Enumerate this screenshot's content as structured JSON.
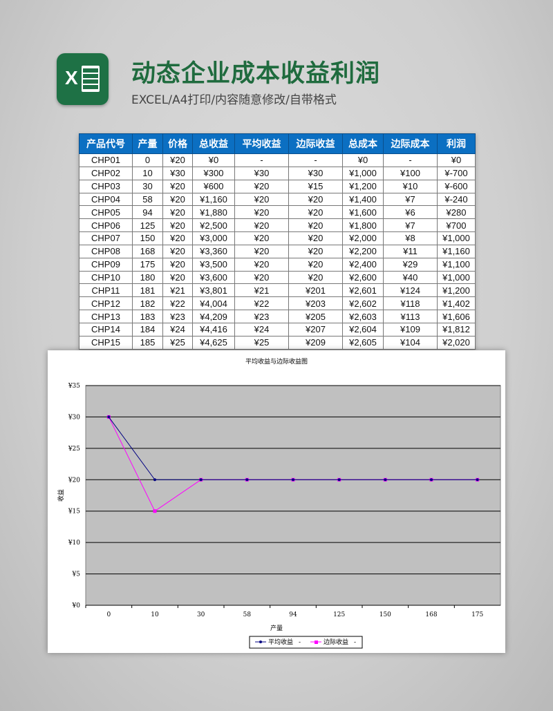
{
  "header": {
    "title": "动态企业成本收益利润",
    "subtitle": "EXCEL/A4打印/内容随意修改/自带格式",
    "logo_letter": "X"
  },
  "table": {
    "columns": [
      "产品代号",
      "产量",
      "价格",
      "总收益",
      "平均收益",
      "边际收益",
      "总成本",
      "边际成本",
      "利润"
    ],
    "rows": [
      [
        "CHP01",
        "0",
        "¥20",
        "¥0",
        "-",
        "-",
        "¥0",
        "-",
        "¥0"
      ],
      [
        "CHP02",
        "10",
        "¥30",
        "¥300",
        "¥30",
        "¥30",
        "¥1,000",
        "¥100",
        "¥-700"
      ],
      [
        "CHP03",
        "30",
        "¥20",
        "¥600",
        "¥20",
        "¥15",
        "¥1,200",
        "¥10",
        "¥-600"
      ],
      [
        "CHP04",
        "58",
        "¥20",
        "¥1,160",
        "¥20",
        "¥20",
        "¥1,400",
        "¥7",
        "¥-240"
      ],
      [
        "CHP05",
        "94",
        "¥20",
        "¥1,880",
        "¥20",
        "¥20",
        "¥1,600",
        "¥6",
        "¥280"
      ],
      [
        "CHP06",
        "125",
        "¥20",
        "¥2,500",
        "¥20",
        "¥20",
        "¥1,800",
        "¥7",
        "¥700"
      ],
      [
        "CHP07",
        "150",
        "¥20",
        "¥3,000",
        "¥20",
        "¥20",
        "¥2,000",
        "¥8",
        "¥1,000"
      ],
      [
        "CHP08",
        "168",
        "¥20",
        "¥3,360",
        "¥20",
        "¥20",
        "¥2,200",
        "¥11",
        "¥1,160"
      ],
      [
        "CHP09",
        "175",
        "¥20",
        "¥3,500",
        "¥20",
        "¥20",
        "¥2,400",
        "¥29",
        "¥1,100"
      ],
      [
        "CHP10",
        "180",
        "¥20",
        "¥3,600",
        "¥20",
        "¥20",
        "¥2,600",
        "¥40",
        "¥1,000"
      ],
      [
        "CHP11",
        "181",
        "¥21",
        "¥3,801",
        "¥21",
        "¥201",
        "¥2,601",
        "¥124",
        "¥1,200"
      ],
      [
        "CHP12",
        "182",
        "¥22",
        "¥4,004",
        "¥22",
        "¥203",
        "¥2,602",
        "¥118",
        "¥1,402"
      ],
      [
        "CHP13",
        "183",
        "¥23",
        "¥4,209",
        "¥23",
        "¥205",
        "¥2,603",
        "¥113",
        "¥1,606"
      ],
      [
        "CHP14",
        "184",
        "¥24",
        "¥4,416",
        "¥24",
        "¥207",
        "¥2,604",
        "¥109",
        "¥1,812"
      ],
      [
        "CHP15",
        "185",
        "¥25",
        "¥4,625",
        "¥25",
        "¥209",
        "¥2,605",
        "¥104",
        "¥2,020"
      ]
    ]
  },
  "chart_data": {
    "type": "line",
    "title": "平均收益与边际收益图",
    "xlabel": "产量",
    "ylabel": "收益",
    "categories": [
      "0",
      "10",
      "30",
      "58",
      "94",
      "125",
      "150",
      "168",
      "175"
    ],
    "yticks": [
      "¥0",
      "¥5",
      "¥10",
      "¥15",
      "¥20",
      "¥25",
      "¥30",
      "¥35"
    ],
    "ylim": [
      0,
      35
    ],
    "grid": true,
    "legend": "bottom",
    "series": [
      {
        "name": "平均收益",
        "values": [
          30,
          20,
          20,
          20,
          20,
          20,
          20,
          20,
          20
        ],
        "color": "#000080",
        "marker": "diamond"
      },
      {
        "name": "边际收益",
        "values": [
          30,
          15,
          20,
          20,
          20,
          20,
          20,
          20,
          20
        ],
        "color": "#ff00ff",
        "marker": "square"
      }
    ],
    "legend_suffix": "-",
    "plot_bg": "#c0c0c0"
  }
}
